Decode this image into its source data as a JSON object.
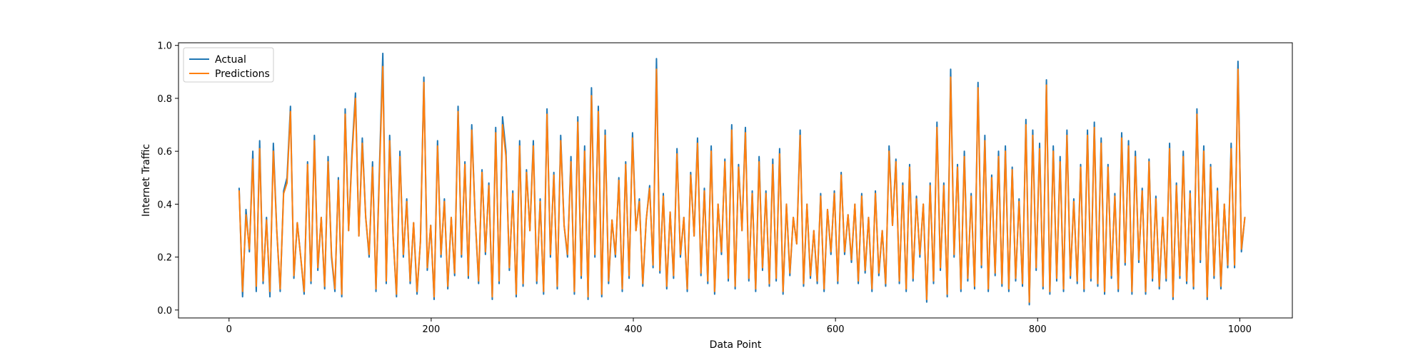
{
  "chart_data": {
    "type": "line",
    "title": "",
    "xlabel": "Data Point",
    "ylabel": "Internet Traffic",
    "xlim": [
      -50,
      1052
    ],
    "ylim": [
      -0.03,
      1.01
    ],
    "xticks": [
      0,
      200,
      400,
      600,
      800,
      1000
    ],
    "xtick_labels": [
      "0",
      "200",
      "400",
      "600",
      "800",
      "1000"
    ],
    "yticks": [
      0.0,
      0.2,
      0.4,
      0.6,
      0.8,
      1.0
    ],
    "ytick_labels": [
      "0.0",
      "0.2",
      "0.4",
      "0.6",
      "0.8",
      "1.0"
    ],
    "grid": false,
    "legend_position": "top-left",
    "x_start": 10,
    "x_end": 1005,
    "point_step": 5,
    "series": [
      {
        "name": "Actual",
        "color": "#1f77b4",
        "values": [
          0.46,
          0.05,
          0.38,
          0.22,
          0.6,
          0.07,
          0.64,
          0.1,
          0.35,
          0.05,
          0.63,
          0.3,
          0.07,
          0.45,
          0.5,
          0.77,
          0.12,
          0.33,
          0.2,
          0.06,
          0.56,
          0.1,
          0.66,
          0.15,
          0.35,
          0.08,
          0.58,
          0.2,
          0.07,
          0.5,
          0.05,
          0.76,
          0.3,
          0.6,
          0.82,
          0.28,
          0.65,
          0.35,
          0.2,
          0.56,
          0.07,
          0.53,
          0.97,
          0.1,
          0.66,
          0.28,
          0.05,
          0.6,
          0.2,
          0.42,
          0.1,
          0.33,
          0.06,
          0.26,
          0.88,
          0.15,
          0.32,
          0.04,
          0.64,
          0.2,
          0.42,
          0.08,
          0.35,
          0.13,
          0.77,
          0.2,
          0.56,
          0.12,
          0.7,
          0.35,
          0.1,
          0.53,
          0.21,
          0.48,
          0.04,
          0.69,
          0.1,
          0.73,
          0.6,
          0.15,
          0.45,
          0.05,
          0.64,
          0.09,
          0.53,
          0.3,
          0.64,
          0.1,
          0.42,
          0.06,
          0.76,
          0.2,
          0.52,
          0.08,
          0.66,
          0.32,
          0.2,
          0.58,
          0.06,
          0.73,
          0.12,
          0.62,
          0.04,
          0.84,
          0.2,
          0.77,
          0.05,
          0.68,
          0.1,
          0.34,
          0.2,
          0.5,
          0.07,
          0.56,
          0.12,
          0.67,
          0.3,
          0.42,
          0.09,
          0.34,
          0.47,
          0.16,
          0.95,
          0.14,
          0.44,
          0.08,
          0.37,
          0.12,
          0.61,
          0.2,
          0.35,
          0.07,
          0.52,
          0.28,
          0.65,
          0.13,
          0.46,
          0.1,
          0.62,
          0.06,
          0.4,
          0.21,
          0.57,
          0.11,
          0.7,
          0.08,
          0.55,
          0.3,
          0.69,
          0.11,
          0.45,
          0.07,
          0.58,
          0.15,
          0.45,
          0.09,
          0.57,
          0.11,
          0.61,
          0.06,
          0.4,
          0.13,
          0.35,
          0.25,
          0.68,
          0.09,
          0.4,
          0.12,
          0.3,
          0.1,
          0.44,
          0.07,
          0.38,
          0.21,
          0.45,
          0.1,
          0.52,
          0.21,
          0.36,
          0.18,
          0.4,
          0.1,
          0.44,
          0.14,
          0.35,
          0.07,
          0.45,
          0.13,
          0.3,
          0.09,
          0.62,
          0.32,
          0.57,
          0.1,
          0.48,
          0.07,
          0.55,
          0.11,
          0.43,
          0.2,
          0.4,
          0.03,
          0.48,
          0.1,
          0.71,
          0.15,
          0.48,
          0.05,
          0.91,
          0.2,
          0.55,
          0.07,
          0.6,
          0.11,
          0.44,
          0.08,
          0.86,
          0.16,
          0.66,
          0.07,
          0.51,
          0.13,
          0.6,
          0.09,
          0.62,
          0.07,
          0.54,
          0.11,
          0.42,
          0.09,
          0.72,
          0.02,
          0.68,
          0.15,
          0.63,
          0.08,
          0.87,
          0.06,
          0.62,
          0.11,
          0.58,
          0.07,
          0.68,
          0.12,
          0.42,
          0.1,
          0.55,
          0.07,
          0.68,
          0.11,
          0.71,
          0.09,
          0.65,
          0.06,
          0.55,
          0.12,
          0.44,
          0.07,
          0.67,
          0.17,
          0.64,
          0.06,
          0.6,
          0.18,
          0.46,
          0.06,
          0.57,
          0.11,
          0.43,
          0.08,
          0.35,
          0.11,
          0.63,
          0.04,
          0.48,
          0.12,
          0.6,
          0.1,
          0.45,
          0.08,
          0.76,
          0.18,
          0.62,
          0.04,
          0.55,
          0.12,
          0.46,
          0.08,
          0.4,
          0.16,
          0.63,
          0.16,
          0.94,
          0.22,
          0.35
        ]
      },
      {
        "name": "Predictions",
        "color": "#ff7f0e",
        "values": [
          0.45,
          0.07,
          0.36,
          0.23,
          0.57,
          0.09,
          0.61,
          0.11,
          0.34,
          0.07,
          0.6,
          0.3,
          0.08,
          0.44,
          0.48,
          0.75,
          0.13,
          0.33,
          0.2,
          0.07,
          0.55,
          0.11,
          0.64,
          0.16,
          0.35,
          0.09,
          0.56,
          0.21,
          0.08,
          0.49,
          0.06,
          0.74,
          0.3,
          0.58,
          0.8,
          0.28,
          0.63,
          0.35,
          0.21,
          0.54,
          0.08,
          0.51,
          0.92,
          0.11,
          0.64,
          0.28,
          0.06,
          0.58,
          0.21,
          0.41,
          0.11,
          0.33,
          0.07,
          0.26,
          0.86,
          0.16,
          0.32,
          0.05,
          0.62,
          0.21,
          0.41,
          0.09,
          0.35,
          0.14,
          0.75,
          0.21,
          0.55,
          0.13,
          0.68,
          0.35,
          0.11,
          0.52,
          0.22,
          0.47,
          0.05,
          0.67,
          0.11,
          0.7,
          0.58,
          0.16,
          0.44,
          0.06,
          0.62,
          0.1,
          0.52,
          0.3,
          0.62,
          0.11,
          0.41,
          0.07,
          0.74,
          0.21,
          0.51,
          0.09,
          0.64,
          0.32,
          0.21,
          0.56,
          0.07,
          0.71,
          0.13,
          0.6,
          0.05,
          0.81,
          0.21,
          0.75,
          0.06,
          0.66,
          0.11,
          0.34,
          0.21,
          0.49,
          0.08,
          0.55,
          0.13,
          0.65,
          0.3,
          0.41,
          0.1,
          0.34,
          0.46,
          0.17,
          0.91,
          0.15,
          0.43,
          0.09,
          0.37,
          0.13,
          0.59,
          0.21,
          0.35,
          0.08,
          0.51,
          0.28,
          0.63,
          0.14,
          0.45,
          0.11,
          0.6,
          0.07,
          0.4,
          0.22,
          0.56,
          0.12,
          0.68,
          0.09,
          0.54,
          0.3,
          0.67,
          0.12,
          0.44,
          0.08,
          0.56,
          0.16,
          0.44,
          0.1,
          0.55,
          0.12,
          0.59,
          0.07,
          0.4,
          0.14,
          0.35,
          0.25,
          0.66,
          0.1,
          0.4,
          0.13,
          0.3,
          0.11,
          0.43,
          0.08,
          0.38,
          0.22,
          0.44,
          0.11,
          0.51,
          0.22,
          0.36,
          0.19,
          0.4,
          0.11,
          0.43,
          0.15,
          0.35,
          0.08,
          0.44,
          0.14,
          0.3,
          0.1,
          0.6,
          0.32,
          0.56,
          0.11,
          0.47,
          0.08,
          0.54,
          0.12,
          0.42,
          0.21,
          0.4,
          0.04,
          0.47,
          0.11,
          0.69,
          0.16,
          0.47,
          0.06,
          0.88,
          0.21,
          0.54,
          0.08,
          0.58,
          0.12,
          0.43,
          0.09,
          0.84,
          0.17,
          0.64,
          0.08,
          0.5,
          0.14,
          0.58,
          0.1,
          0.6,
          0.08,
          0.53,
          0.12,
          0.41,
          0.1,
          0.7,
          0.03,
          0.66,
          0.16,
          0.61,
          0.09,
          0.85,
          0.07,
          0.6,
          0.12,
          0.56,
          0.08,
          0.66,
          0.13,
          0.41,
          0.11,
          0.54,
          0.08,
          0.66,
          0.12,
          0.69,
          0.1,
          0.63,
          0.07,
          0.54,
          0.13,
          0.43,
          0.08,
          0.65,
          0.18,
          0.62,
          0.07,
          0.58,
          0.19,
          0.45,
          0.07,
          0.56,
          0.12,
          0.42,
          0.09,
          0.35,
          0.12,
          0.61,
          0.05,
          0.47,
          0.13,
          0.58,
          0.11,
          0.44,
          0.09,
          0.74,
          0.19,
          0.6,
          0.05,
          0.54,
          0.13,
          0.45,
          0.09,
          0.4,
          0.17,
          0.61,
          0.17,
          0.91,
          0.23,
          0.35
        ]
      }
    ]
  }
}
